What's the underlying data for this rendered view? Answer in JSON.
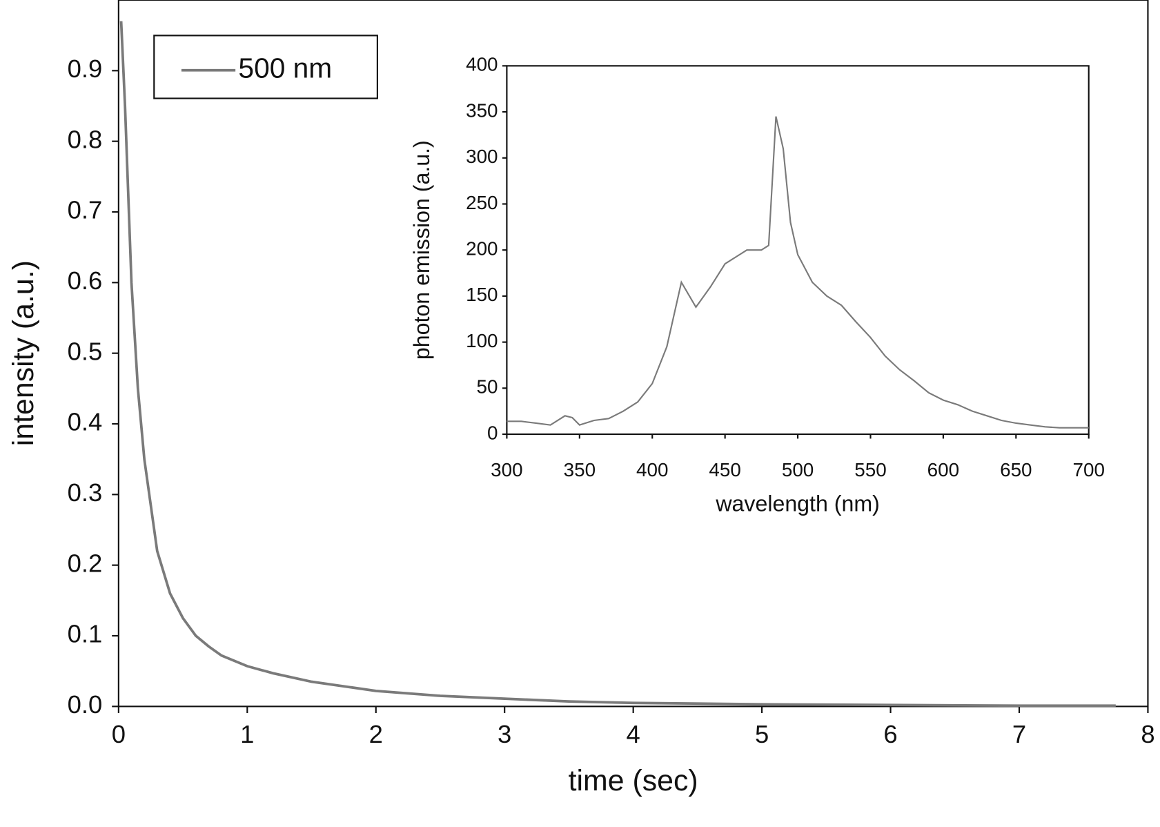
{
  "chart_data": [
    {
      "type": "line",
      "x_label": "time (sec)",
      "y_label": "intensity (a.u.)",
      "x": [
        0.02,
        0.05,
        0.1,
        0.15,
        0.2,
        0.3,
        0.4,
        0.5,
        0.6,
        0.7,
        0.8,
        1,
        1.2,
        1.5,
        2,
        2.5,
        3,
        3.5,
        4,
        5,
        6,
        7,
        7.75
      ],
      "series": [
        {
          "name": "500 nm",
          "color": "#7a7a7a",
          "values": [
            0.97,
            0.85,
            0.6,
            0.45,
            0.35,
            0.22,
            0.16,
            0.125,
            0.1,
            0.085,
            0.072,
            0.057,
            0.047,
            0.035,
            0.022,
            0.015,
            0.011,
            0.007,
            0.005,
            0.003,
            0.002,
            0.001,
            0.001
          ]
        }
      ],
      "xlim": [
        0,
        8
      ],
      "xticks": [
        0,
        1,
        2,
        3,
        4,
        5,
        6,
        7,
        8
      ],
      "ylim": [
        0,
        1.0
      ],
      "yticks": [
        {
          "value": 0,
          "label": "0.0"
        },
        0.1,
        0.2,
        0.3,
        0.4,
        0.5,
        0.6,
        0.7,
        0.8,
        0.9
      ],
      "legend": "upper left",
      "grid": false
    },
    {
      "type": "line",
      "x_label": "wavelength (nm)",
      "y_label": "photon emission (a.u.)",
      "x": [
        300,
        310,
        320,
        330,
        340,
        345,
        350,
        360,
        370,
        380,
        390,
        400,
        410,
        420,
        430,
        440,
        450,
        460,
        465,
        475,
        480,
        485,
        490,
        495,
        500,
        510,
        520,
        530,
        540,
        550,
        560,
        570,
        580,
        590,
        600,
        610,
        620,
        630,
        640,
        650,
        660,
        670,
        680,
        700
      ],
      "values": [
        14,
        14,
        12,
        10,
        20,
        18,
        10,
        15,
        17,
        25,
        35,
        55,
        95,
        165,
        138,
        160,
        185,
        195,
        200,
        200,
        205,
        345,
        310,
        230,
        195,
        165,
        150,
        140,
        122,
        105,
        85,
        70,
        58,
        45,
        37,
        32,
        25,
        20,
        15,
        12,
        10,
        8,
        7,
        7
      ],
      "color": "#7a7a7a",
      "xlim": [
        300,
        700
      ],
      "xticks": [
        300,
        350,
        400,
        450,
        500,
        550,
        600,
        650,
        700
      ],
      "ylim": [
        0,
        400
      ],
      "yticks": [
        0,
        50,
        100,
        150,
        200,
        250,
        300,
        350,
        400
      ],
      "grid": false
    }
  ]
}
